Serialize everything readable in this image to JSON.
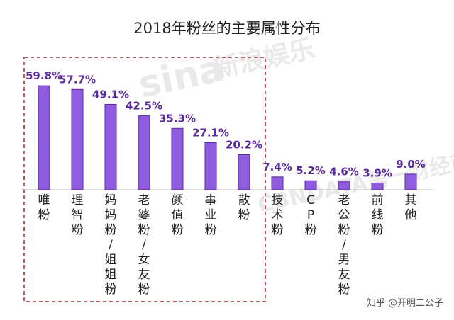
{
  "chart_data": {
    "type": "bar",
    "title": "2018年粉丝的主要属性分布",
    "categories": [
      "唯粉",
      "理智粉",
      "妈妈粉/姐姐粉",
      "老婆粉/女友粉",
      "颜值粉",
      "事业粉",
      "散粉",
      "技术粉",
      "CP粉",
      "老公粉/男友粉",
      "前线粉",
      "其他"
    ],
    "values": [
      59.8,
      57.7,
      49.1,
      42.5,
      35.3,
      27.1,
      20.2,
      7.4,
      5.2,
      4.6,
      3.9,
      9.0
    ],
    "value_labels": [
      "59.8%",
      "57.7%",
      "49.1%",
      "42.5%",
      "35.3%",
      "27.1%",
      "20.2%",
      "7.4%",
      "5.2%",
      "4.6%",
      "3.9%",
      "9.0%"
    ],
    "unit": "%",
    "ylim": [
      0,
      63
    ],
    "xlabel": "",
    "ylabel": "",
    "grid": false,
    "highlighted_categories": [
      "唯粉",
      "理智粉",
      "妈妈粉/姐姐粉",
      "老婆粉/女友粉",
      "颜值粉",
      "事业粉",
      "散粉"
    ]
  },
  "colors": {
    "bar": "#8f5ce0",
    "bar_edge": "#5a2a9e",
    "value_text": "#5a2a9e",
    "highlight_box": "#b22b3a"
  },
  "watermarks": {
    "sina_logo": "sina",
    "sina_cn": "新浪娱乐",
    "cbn": "CBNDATA第一财经商业数据"
  },
  "credit": "知乎 @开明二公子"
}
